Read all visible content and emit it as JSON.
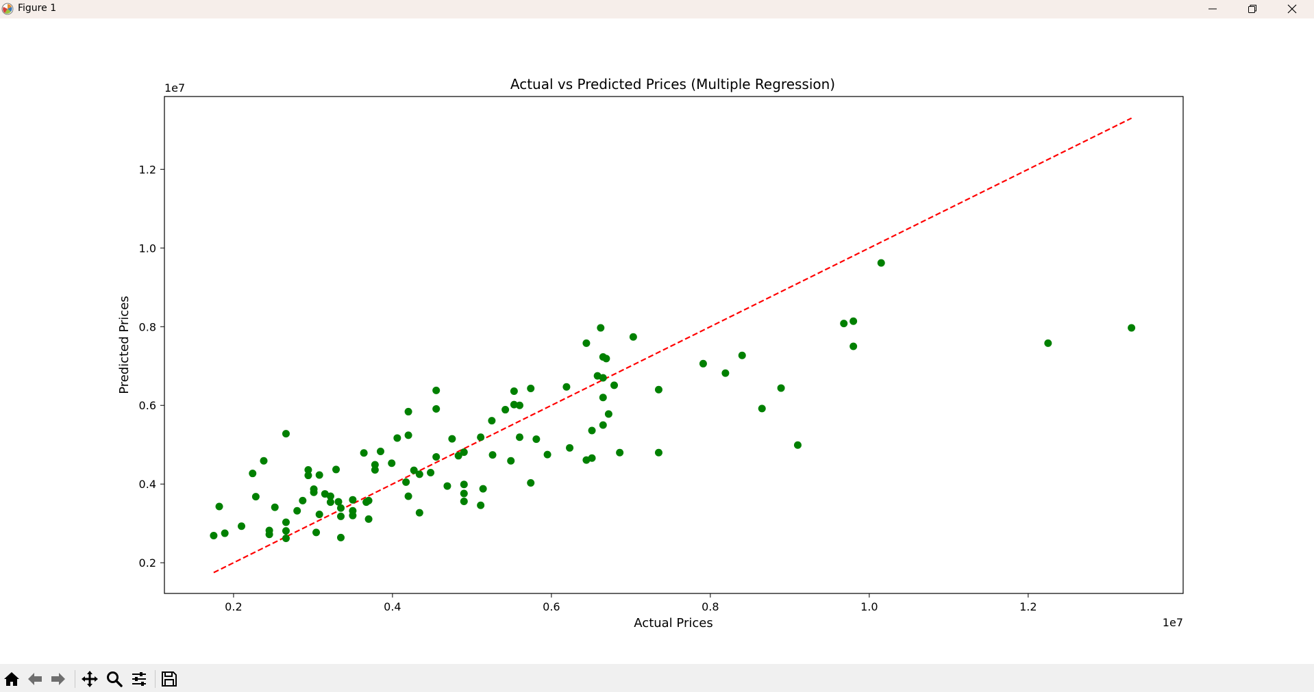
{
  "window": {
    "title": "Figure 1",
    "icons": [
      "matplotlib-logo-icon",
      "minimize-icon",
      "restore-icon",
      "close-icon"
    ]
  },
  "toolbar": {
    "buttons": [
      {
        "name": "home-icon",
        "action": "reset-view"
      },
      {
        "name": "back-arrow-icon",
        "action": "back"
      },
      {
        "name": "forward-arrow-icon",
        "action": "forward"
      },
      {
        "name": "pan-icon",
        "action": "pan"
      },
      {
        "name": "zoom-icon",
        "action": "zoom"
      },
      {
        "name": "configure-subplots-icon",
        "action": "configure"
      },
      {
        "name": "save-icon",
        "action": "save"
      }
    ]
  },
  "chart_data": {
    "type": "scatter",
    "title": "Actual vs Predicted Prices (Multiple Regression)",
    "xlabel": "Actual Prices",
    "ylabel": "Predicted Prices",
    "x_offset_label": "1e7",
    "y_offset_label": "1e7",
    "xlim": [
      1130000,
      13950000
    ],
    "ylim": [
      1220000,
      13850000
    ],
    "xticks": [
      2000000,
      4000000,
      6000000,
      8000000,
      10000000,
      12000000
    ],
    "xtick_labels": [
      "0.2",
      "0.4",
      "0.6",
      "0.8",
      "1.0",
      "1.2"
    ],
    "yticks": [
      2000000,
      4000000,
      6000000,
      8000000,
      10000000,
      12000000
    ],
    "ytick_labels": [
      "0.2",
      "0.4",
      "0.6",
      "0.8",
      "1.0",
      "1.2"
    ],
    "grid": false,
    "point_color": "#008000",
    "line_color": "#ff0000",
    "reference_line": {
      "style": "dashed",
      "points": [
        [
          1750000,
          1750000
        ],
        [
          13300000,
          13300000
        ]
      ]
    },
    "points": [
      [
        1750000,
        2690000
      ],
      [
        1820000,
        3430000
      ],
      [
        1890000,
        2750000
      ],
      [
        2100000,
        2930000
      ],
      [
        2240000,
        4270000
      ],
      [
        2280000,
        3680000
      ],
      [
        2380000,
        4590000
      ],
      [
        2450000,
        2720000
      ],
      [
        2450000,
        2820000
      ],
      [
        2520000,
        3410000
      ],
      [
        2660000,
        3030000
      ],
      [
        2660000,
        2810000
      ],
      [
        2660000,
        2620000
      ],
      [
        2660000,
        5280000
      ],
      [
        2800000,
        3320000
      ],
      [
        2870000,
        3580000
      ],
      [
        2940000,
        4360000
      ],
      [
        2940000,
        4220000
      ],
      [
        3010000,
        3790000
      ],
      [
        3010000,
        3870000
      ],
      [
        3040000,
        2770000
      ],
      [
        3080000,
        4230000
      ],
      [
        3080000,
        3230000
      ],
      [
        3150000,
        3750000
      ],
      [
        3220000,
        3690000
      ],
      [
        3220000,
        3540000
      ],
      [
        3290000,
        4370000
      ],
      [
        3320000,
        3550000
      ],
      [
        3350000,
        3390000
      ],
      [
        3350000,
        3180000
      ],
      [
        3350000,
        2640000
      ],
      [
        3500000,
        3600000
      ],
      [
        3500000,
        3320000
      ],
      [
        3500000,
        3200000
      ],
      [
        3640000,
        4790000
      ],
      [
        3670000,
        3540000
      ],
      [
        3700000,
        3580000
      ],
      [
        3700000,
        3110000
      ],
      [
        3780000,
        4490000
      ],
      [
        3780000,
        4360000
      ],
      [
        3850000,
        4830000
      ],
      [
        3990000,
        4530000
      ],
      [
        4060000,
        5170000
      ],
      [
        4170000,
        4050000
      ],
      [
        4200000,
        5240000
      ],
      [
        4200000,
        5840000
      ],
      [
        4200000,
        3690000
      ],
      [
        4270000,
        4350000
      ],
      [
        4340000,
        4250000
      ],
      [
        4340000,
        3270000
      ],
      [
        4480000,
        4290000
      ],
      [
        4550000,
        6380000
      ],
      [
        4550000,
        5910000
      ],
      [
        4550000,
        4690000
      ],
      [
        4690000,
        3950000
      ],
      [
        4750000,
        5150000
      ],
      [
        4830000,
        4720000
      ],
      [
        4900000,
        4810000
      ],
      [
        4900000,
        3990000
      ],
      [
        4900000,
        3760000
      ],
      [
        4900000,
        3560000
      ],
      [
        5110000,
        5190000
      ],
      [
        5110000,
        3460000
      ],
      [
        5140000,
        3880000
      ],
      [
        5250000,
        5610000
      ],
      [
        5260000,
        4740000
      ],
      [
        5420000,
        5890000
      ],
      [
        5490000,
        4590000
      ],
      [
        5530000,
        6360000
      ],
      [
        5530000,
        6020000
      ],
      [
        5600000,
        6000000
      ],
      [
        5600000,
        5190000
      ],
      [
        5740000,
        6430000
      ],
      [
        5740000,
        4030000
      ],
      [
        5810000,
        5140000
      ],
      [
        5950000,
        4750000
      ],
      [
        6190000,
        6470000
      ],
      [
        6230000,
        4920000
      ],
      [
        6440000,
        7580000
      ],
      [
        6440000,
        4610000
      ],
      [
        6510000,
        5360000
      ],
      [
        6510000,
        4660000
      ],
      [
        6580000,
        6750000
      ],
      [
        6620000,
        7970000
      ],
      [
        6650000,
        7230000
      ],
      [
        6650000,
        6700000
      ],
      [
        6650000,
        6200000
      ],
      [
        6650000,
        5500000
      ],
      [
        6690000,
        7190000
      ],
      [
        6720000,
        5780000
      ],
      [
        6790000,
        6510000
      ],
      [
        6860000,
        4800000
      ],
      [
        7030000,
        7740000
      ],
      [
        7350000,
        6400000
      ],
      [
        7350000,
        4800000
      ],
      [
        7910000,
        7060000
      ],
      [
        8190000,
        6820000
      ],
      [
        8400000,
        7270000
      ],
      [
        8650000,
        5920000
      ],
      [
        8890000,
        6440000
      ],
      [
        9100000,
        4990000
      ],
      [
        9680000,
        8080000
      ],
      [
        9800000,
        8140000
      ],
      [
        9800000,
        7500000
      ],
      [
        10150000,
        9620000
      ],
      [
        12250000,
        7580000
      ],
      [
        13300000,
        7970000
      ]
    ]
  }
}
